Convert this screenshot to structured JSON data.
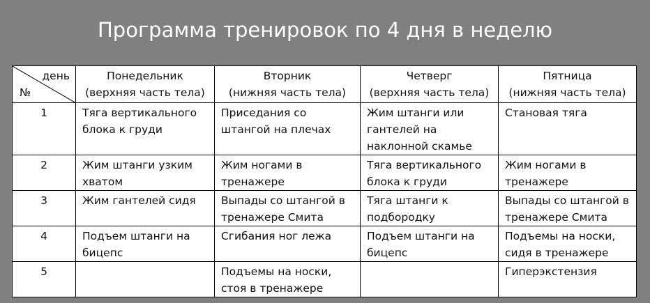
{
  "title": "Программа тренировок по 4 дня в неделю",
  "corner": {
    "day": "день",
    "num": "№"
  },
  "headers": [
    {
      "day": "Понедельник",
      "sub": "(верхняя часть тела)"
    },
    {
      "day": "Вторник",
      "sub": "(нижняя часть тела)"
    },
    {
      "day": "Четверг",
      "sub": "(верхняя часть тела)"
    },
    {
      "day": "Пятница",
      "sub": "(нижняя часть тела)"
    }
  ],
  "rows": [
    {
      "n": "1",
      "cells": [
        "Тяга вертикального блока к груди",
        "Приседания со штангой на плечах",
        "Жим штанги или гантелей на наклонной скамье",
        "Становая тяга"
      ]
    },
    {
      "n": "2",
      "cells": [
        "Жим штанги узким хватом",
        "Жим ногами в тренажере",
        "Тяга вертикального блока к груди",
        "Жим ногами в тренажере"
      ]
    },
    {
      "n": "3",
      "cells": [
        "Жим гантелей сидя",
        "Выпады со штангой в тренажере Смита",
        "Тяга штанги к подбородку",
        "Выпады  со штангой в тренажере Смита"
      ]
    },
    {
      "n": "4",
      "cells": [
        "Подъем штанги на бицепс",
        "Сгибания ног лежа",
        "Подъем штанги на бицепс",
        "Подъемы на носки, сидя в тренажере"
      ]
    },
    {
      "n": "5",
      "cells": [
        "",
        "Подъемы на носки, стоя в тренажере",
        "",
        "Гиперэкстензия"
      ]
    }
  ]
}
